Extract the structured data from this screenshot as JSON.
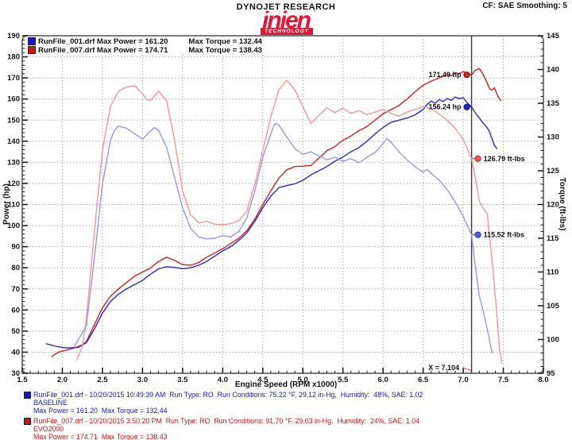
{
  "header": {
    "brand": "DYNOJET RESEARCH",
    "cf_smoothing": "CF: SAE  Smoothing: 5",
    "logo_word": "injen",
    "logo_tm": "'",
    "logo_band": "TECHNOLOGY"
  },
  "colors": {
    "logo_red": "#e31837",
    "power_red": "#d22020",
    "power_blue": "#2828c8",
    "torque_red": "#f09898",
    "torque_blue": "#9898e8",
    "footer_blue": "#1414c8",
    "footer_red": "#c81414",
    "grid": "#ababab",
    "frame": "#7a7a7a",
    "cursor": "#3a3a3a"
  },
  "legend": {
    "entries": [
      {
        "name_power": "RunFile_001.drf Max Power = 161.20",
        "max_torque": "Max Torque = 132.44",
        "color": "#1414d0"
      },
      {
        "name_power": "RunFile_007.drf Max Power = 174.71",
        "max_torque": "Max Torque = 138.43",
        "color": "#d01414"
      }
    ]
  },
  "chart_data": {
    "type": "line",
    "axes": {
      "x": {
        "label": "Engine Speed (RPM x1000)",
        "min": 1.5,
        "max": 8.0,
        "major": 0.5,
        "minor": 0.1
      },
      "y_left": {
        "label": "Power (hp)",
        "min": 30,
        "max": 190,
        "major": 10,
        "minor": 2
      },
      "y_right": {
        "label": "Torque (ft-lbs)",
        "min": 95,
        "max": 145,
        "major": 5,
        "minor": 1
      }
    },
    "grid": {
      "h_values_hp": [
        40,
        50,
        60,
        70,
        80,
        90,
        100,
        110,
        120,
        130,
        140,
        150,
        160,
        170,
        180
      ],
      "v_values_rpm": [
        2.0,
        2.5,
        3.0,
        3.5,
        4.0,
        4.5,
        5.0,
        5.5,
        6.0,
        6.5,
        7.0,
        7.5
      ]
    },
    "cursor": {
      "x": 7.104,
      "label": "X = 7.104"
    },
    "series": [
      {
        "name": "RunFile_007 Power",
        "axis": "left",
        "color": "#d22020",
        "width": 1.4,
        "data": [
          [
            1.87,
            38
          ],
          [
            1.95,
            40
          ],
          [
            2.05,
            41
          ],
          [
            2.15,
            42
          ],
          [
            2.25,
            43.5
          ],
          [
            2.3,
            45
          ],
          [
            2.4,
            53
          ],
          [
            2.5,
            61
          ],
          [
            2.6,
            66.5
          ],
          [
            2.7,
            70
          ],
          [
            2.8,
            73
          ],
          [
            2.9,
            76
          ],
          [
            3.0,
            78
          ],
          [
            3.1,
            80
          ],
          [
            3.2,
            83
          ],
          [
            3.3,
            85
          ],
          [
            3.4,
            83.5
          ],
          [
            3.5,
            81.5
          ],
          [
            3.6,
            81.2
          ],
          [
            3.7,
            82.5
          ],
          [
            3.8,
            85
          ],
          [
            3.9,
            87
          ],
          [
            4.0,
            89
          ],
          [
            4.1,
            91.5
          ],
          [
            4.2,
            94
          ],
          [
            4.3,
            97.5
          ],
          [
            4.4,
            103
          ],
          [
            4.5,
            110
          ],
          [
            4.6,
            116.5
          ],
          [
            4.7,
            122.5
          ],
          [
            4.8,
            126.5
          ],
          [
            4.9,
            128
          ],
          [
            5.0,
            128.2
          ],
          [
            5.1,
            128.5
          ],
          [
            5.2,
            132
          ],
          [
            5.3,
            135.5
          ],
          [
            5.4,
            137.5
          ],
          [
            5.5,
            140.5
          ],
          [
            5.6,
            142.5
          ],
          [
            5.7,
            145
          ],
          [
            5.8,
            147
          ],
          [
            5.9,
            150
          ],
          [
            6.0,
            153
          ],
          [
            6.1,
            155
          ],
          [
            6.2,
            157
          ],
          [
            6.3,
            160
          ],
          [
            6.4,
            163.5
          ],
          [
            6.5,
            166.5
          ],
          [
            6.6,
            168.5
          ],
          [
            6.7,
            170
          ],
          [
            6.8,
            171.5
          ],
          [
            6.85,
            171
          ],
          [
            6.9,
            172.5
          ],
          [
            6.95,
            172
          ],
          [
            7.0,
            173
          ],
          [
            7.05,
            172.3
          ],
          [
            7.104,
            171.49
          ],
          [
            7.15,
            173.6
          ],
          [
            7.2,
            174.5
          ],
          [
            7.25,
            171.5
          ],
          [
            7.3,
            167.5
          ],
          [
            7.33,
            164.8
          ],
          [
            7.36,
            164.2
          ],
          [
            7.39,
            165.3
          ],
          [
            7.43,
            161.5
          ],
          [
            7.47,
            159.3
          ]
        ]
      },
      {
        "name": "RunFile_001 Power",
        "axis": "left",
        "color": "#2828c8",
        "width": 1.4,
        "data": [
          [
            1.8,
            44
          ],
          [
            1.9,
            43
          ],
          [
            2.0,
            42.2
          ],
          [
            2.1,
            42
          ],
          [
            2.2,
            42.3
          ],
          [
            2.3,
            44.5
          ],
          [
            2.4,
            51
          ],
          [
            2.5,
            58.5
          ],
          [
            2.6,
            64
          ],
          [
            2.7,
            67.5
          ],
          [
            2.8,
            70
          ],
          [
            2.9,
            72
          ],
          [
            3.0,
            74
          ],
          [
            3.1,
            77
          ],
          [
            3.2,
            79.5
          ],
          [
            3.3,
            80.5
          ],
          [
            3.4,
            80.2
          ],
          [
            3.5,
            79.6
          ],
          [
            3.6,
            80
          ],
          [
            3.7,
            81.2
          ],
          [
            3.8,
            83
          ],
          [
            3.9,
            85.5
          ],
          [
            4.0,
            88
          ],
          [
            4.1,
            90
          ],
          [
            4.2,
            93
          ],
          [
            4.3,
            96.5
          ],
          [
            4.4,
            102
          ],
          [
            4.5,
            108.5
          ],
          [
            4.6,
            114
          ],
          [
            4.7,
            118
          ],
          [
            4.8,
            119
          ],
          [
            4.9,
            119.8
          ],
          [
            5.0,
            121.5
          ],
          [
            5.1,
            124
          ],
          [
            5.2,
            126
          ],
          [
            5.3,
            128
          ],
          [
            5.4,
            130.5
          ],
          [
            5.5,
            132.5
          ],
          [
            5.6,
            135
          ],
          [
            5.7,
            137
          ],
          [
            5.8,
            140
          ],
          [
            5.9,
            143.5
          ],
          [
            6.0,
            146.5
          ],
          [
            6.1,
            149
          ],
          [
            6.2,
            150
          ],
          [
            6.3,
            151
          ],
          [
            6.4,
            152.5
          ],
          [
            6.5,
            155
          ],
          [
            6.55,
            157.5
          ],
          [
            6.6,
            159
          ],
          [
            6.65,
            158
          ],
          [
            6.7,
            159.8
          ],
          [
            6.75,
            158.8
          ],
          [
            6.8,
            160.3
          ],
          [
            6.85,
            159.3
          ],
          [
            6.9,
            161.0
          ],
          [
            6.95,
            160.2
          ],
          [
            7.0,
            160.6
          ],
          [
            7.05,
            158.3
          ],
          [
            7.104,
            156.24
          ],
          [
            7.15,
            153.5
          ],
          [
            7.2,
            151
          ],
          [
            7.25,
            148.5
          ],
          [
            7.3,
            146.3
          ],
          [
            7.33,
            144.3
          ],
          [
            7.36,
            141
          ],
          [
            7.39,
            138
          ],
          [
            7.42,
            136.5
          ]
        ]
      },
      {
        "name": "RunFile_007 Torque",
        "axis": "right",
        "color": "#f09898",
        "width": 1.4,
        "data": [
          [
            2.18,
            97
          ],
          [
            2.25,
            99
          ],
          [
            2.3,
            103
          ],
          [
            2.4,
            116
          ],
          [
            2.5,
            128
          ],
          [
            2.6,
            134.5
          ],
          [
            2.7,
            136.8
          ],
          [
            2.8,
            137.4
          ],
          [
            2.9,
            137.6
          ],
          [
            3.0,
            136.4
          ],
          [
            3.05,
            135.6
          ],
          [
            3.1,
            135.4
          ],
          [
            3.2,
            136.8
          ],
          [
            3.3,
            135.4
          ],
          [
            3.4,
            129.5
          ],
          [
            3.5,
            122
          ],
          [
            3.6,
            118.5
          ],
          [
            3.7,
            117.3
          ],
          [
            3.8,
            117.5
          ],
          [
            3.9,
            117.1
          ],
          [
            4.0,
            117
          ],
          [
            4.1,
            117.2
          ],
          [
            4.2,
            117.6
          ],
          [
            4.3,
            119
          ],
          [
            4.4,
            123
          ],
          [
            4.5,
            128
          ],
          [
            4.6,
            133
          ],
          [
            4.7,
            137
          ],
          [
            4.8,
            138.4
          ],
          [
            4.9,
            137
          ],
          [
            5.0,
            134.5
          ],
          [
            5.1,
            132
          ],
          [
            5.2,
            133.2
          ],
          [
            5.3,
            134.3
          ],
          [
            5.4,
            133.6
          ],
          [
            5.5,
            134.3
          ],
          [
            5.6,
            133.5
          ],
          [
            5.7,
            133.9
          ],
          [
            5.8,
            133.3
          ],
          [
            5.9,
            133.7
          ],
          [
            6.0,
            134.1
          ],
          [
            6.1,
            133.5
          ],
          [
            6.2,
            133.1
          ],
          [
            6.3,
            133.7
          ],
          [
            6.4,
            134.1
          ],
          [
            6.5,
            134.5
          ],
          [
            6.6,
            134.2
          ],
          [
            6.7,
            133.4
          ],
          [
            6.8,
            132.5
          ],
          [
            6.9,
            131.3
          ],
          [
            7.0,
            129.7
          ],
          [
            7.05,
            128.3
          ],
          [
            7.104,
            126.79
          ],
          [
            7.15,
            124
          ],
          [
            7.2,
            120.5
          ],
          [
            7.25,
            119.4
          ],
          [
            7.3,
            118.6
          ],
          [
            7.33,
            115
          ],
          [
            7.37,
            110.5
          ],
          [
            7.41,
            105
          ],
          [
            7.45,
            99
          ],
          [
            7.48,
            96.5
          ]
        ]
      },
      {
        "name": "RunFile_001 Torque",
        "axis": "right",
        "color": "#9898e8",
        "width": 1.4,
        "data": [
          [
            2.15,
            99
          ],
          [
            2.2,
            100
          ],
          [
            2.3,
            102
          ],
          [
            2.4,
            112
          ],
          [
            2.5,
            123
          ],
          [
            2.6,
            129.5
          ],
          [
            2.65,
            131
          ],
          [
            2.7,
            131.6
          ],
          [
            2.8,
            131.3
          ],
          [
            2.9,
            130.5
          ],
          [
            3.0,
            129.7
          ],
          [
            3.1,
            130.9
          ],
          [
            3.15,
            131.4
          ],
          [
            3.2,
            131
          ],
          [
            3.3,
            128.5
          ],
          [
            3.4,
            124
          ],
          [
            3.5,
            119.5
          ],
          [
            3.6,
            116.5
          ],
          [
            3.7,
            115.2
          ],
          [
            3.8,
            114.9
          ],
          [
            3.9,
            115
          ],
          [
            4.0,
            115.4
          ],
          [
            4.1,
            115.2
          ],
          [
            4.2,
            116
          ],
          [
            4.3,
            118
          ],
          [
            4.4,
            122
          ],
          [
            4.5,
            127
          ],
          [
            4.6,
            130.5
          ],
          [
            4.65,
            132
          ],
          [
            4.7,
            131.8
          ],
          [
            4.8,
            130
          ],
          [
            4.9,
            128.3
          ],
          [
            5.0,
            127.4
          ],
          [
            5.1,
            127.8
          ],
          [
            5.2,
            127.2
          ],
          [
            5.3,
            126.6
          ],
          [
            5.4,
            127
          ],
          [
            5.5,
            126.4
          ],
          [
            5.6,
            126.8
          ],
          [
            5.7,
            126.2
          ],
          [
            5.8,
            127
          ],
          [
            5.9,
            127.7
          ],
          [
            6.0,
            129
          ],
          [
            6.05,
            129.8
          ],
          [
            6.1,
            129.2
          ],
          [
            6.2,
            127.8
          ],
          [
            6.3,
            126.6
          ],
          [
            6.4,
            125.6
          ],
          [
            6.5,
            124.8
          ],
          [
            6.55,
            125.2
          ],
          [
            6.6,
            124.6
          ],
          [
            6.7,
            123.6
          ],
          [
            6.8,
            122.2
          ],
          [
            6.9,
            120.4
          ],
          [
            7.0,
            118.2
          ],
          [
            7.05,
            116.9
          ],
          [
            7.104,
            115.52
          ],
          [
            7.15,
            111
          ],
          [
            7.2,
            106.5
          ],
          [
            7.25,
            104.2
          ],
          [
            7.3,
            101.5
          ],
          [
            7.33,
            99.8
          ],
          [
            7.36,
            98
          ]
        ]
      }
    ],
    "callouts": [
      {
        "text": "171.49 hp",
        "value": 171.49,
        "axis": "left",
        "side": "left",
        "dot_color": "#e02020",
        "dot_edge": "#8a0f0f"
      },
      {
        "text": "156.24 hp",
        "value": 156.24,
        "axis": "left",
        "side": "left",
        "dot_color": "#2020e0",
        "dot_edge": "#0f0f8a"
      },
      {
        "text": "126.79 ft-lbs",
        "value": 126.79,
        "axis": "right",
        "side": "right",
        "dot_color": "#ee5555",
        "dot_edge": "#a82a2a"
      },
      {
        "text": "115.52 ft-lbs",
        "value": 115.52,
        "axis": "right",
        "side": "right",
        "dot_color": "#5555ee",
        "dot_edge": "#2a2aa8"
      }
    ]
  },
  "footer": {
    "runs": [
      {
        "line1": "RunFile_001.drf - 10/20/2015 10:49:39 AM  Run Type: RO  Run Conditions: 75.22 °F, 29.12 in-Hg,  Humidity:  48%, SAE: 1.02",
        "line2": "BASELINE",
        "line3": "Max Power = 161.20  Max Torque = 132.44",
        "color": "#1414c8"
      },
      {
        "line1": "RunFile_007.drf - 10/20/2015 3:50:20 PM  Run Type: RO  Run Conditions: 91.70 °F, 29.03 in-Hg,  Humidity:  24%, SAE: 1.04",
        "line2": "EVO2000",
        "line3": "Max Power = 174.71  Max Torque = 138.43",
        "color": "#c81414"
      }
    ]
  }
}
